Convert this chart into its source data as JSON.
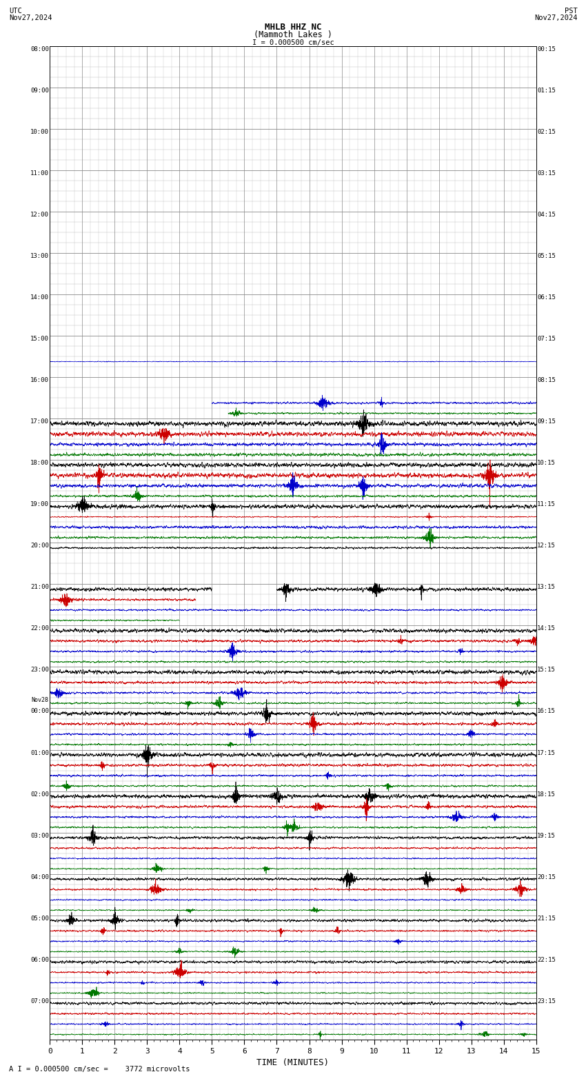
{
  "title_line1": "MHLB HHZ NC",
  "title_line2": "(Mammoth Lakes )",
  "scale_label": "I = 0.000500 cm/sec",
  "bottom_label": "A I = 0.000500 cm/sec =    3772 microvolts",
  "xlabel": "TIME (MINUTES)",
  "utc_label": "UTC\nNov27,2024",
  "pst_label": "PST\nNov27,2024",
  "bg_color": "#ffffff",
  "grid_color": "#888888",
  "minor_grid_color": "#bbbbbb",
  "trace_colors": [
    "#000000",
    "#cc0000",
    "#0000cc",
    "#007700"
  ],
  "left_times_utc": [
    "08:00",
    "09:00",
    "10:00",
    "11:00",
    "12:00",
    "13:00",
    "14:00",
    "15:00",
    "16:00",
    "17:00",
    "18:00",
    "19:00",
    "20:00",
    "21:00",
    "22:00",
    "23:00",
    "Nov28\n00:00",
    "01:00",
    "02:00",
    "03:00",
    "04:00",
    "05:00",
    "06:00",
    "07:00"
  ],
  "right_times_pst": [
    "00:15",
    "01:15",
    "02:15",
    "03:15",
    "04:15",
    "05:15",
    "06:15",
    "07:15",
    "08:15",
    "09:15",
    "10:15",
    "11:15",
    "12:15",
    "13:15",
    "14:15",
    "15:15",
    "16:15",
    "17:15",
    "18:15",
    "19:15",
    "20:15",
    "21:15",
    "22:15",
    "23:15"
  ],
  "n_rows": 24,
  "n_traces_per_row": 4,
  "xmin": 0,
  "xmax": 15,
  "x_ticks": [
    0,
    1,
    2,
    3,
    4,
    5,
    6,
    7,
    8,
    9,
    10,
    11,
    12,
    13,
    14,
    15
  ],
  "noise_seed": 42,
  "figwidth": 8.5,
  "figheight": 15.84,
  "dpi": 100,
  "row_quiet_until": 8,
  "trace_amp_black": 0.18,
  "trace_amp_red": 0.14,
  "trace_amp_blue": 0.12,
  "trace_amp_green": 0.12
}
